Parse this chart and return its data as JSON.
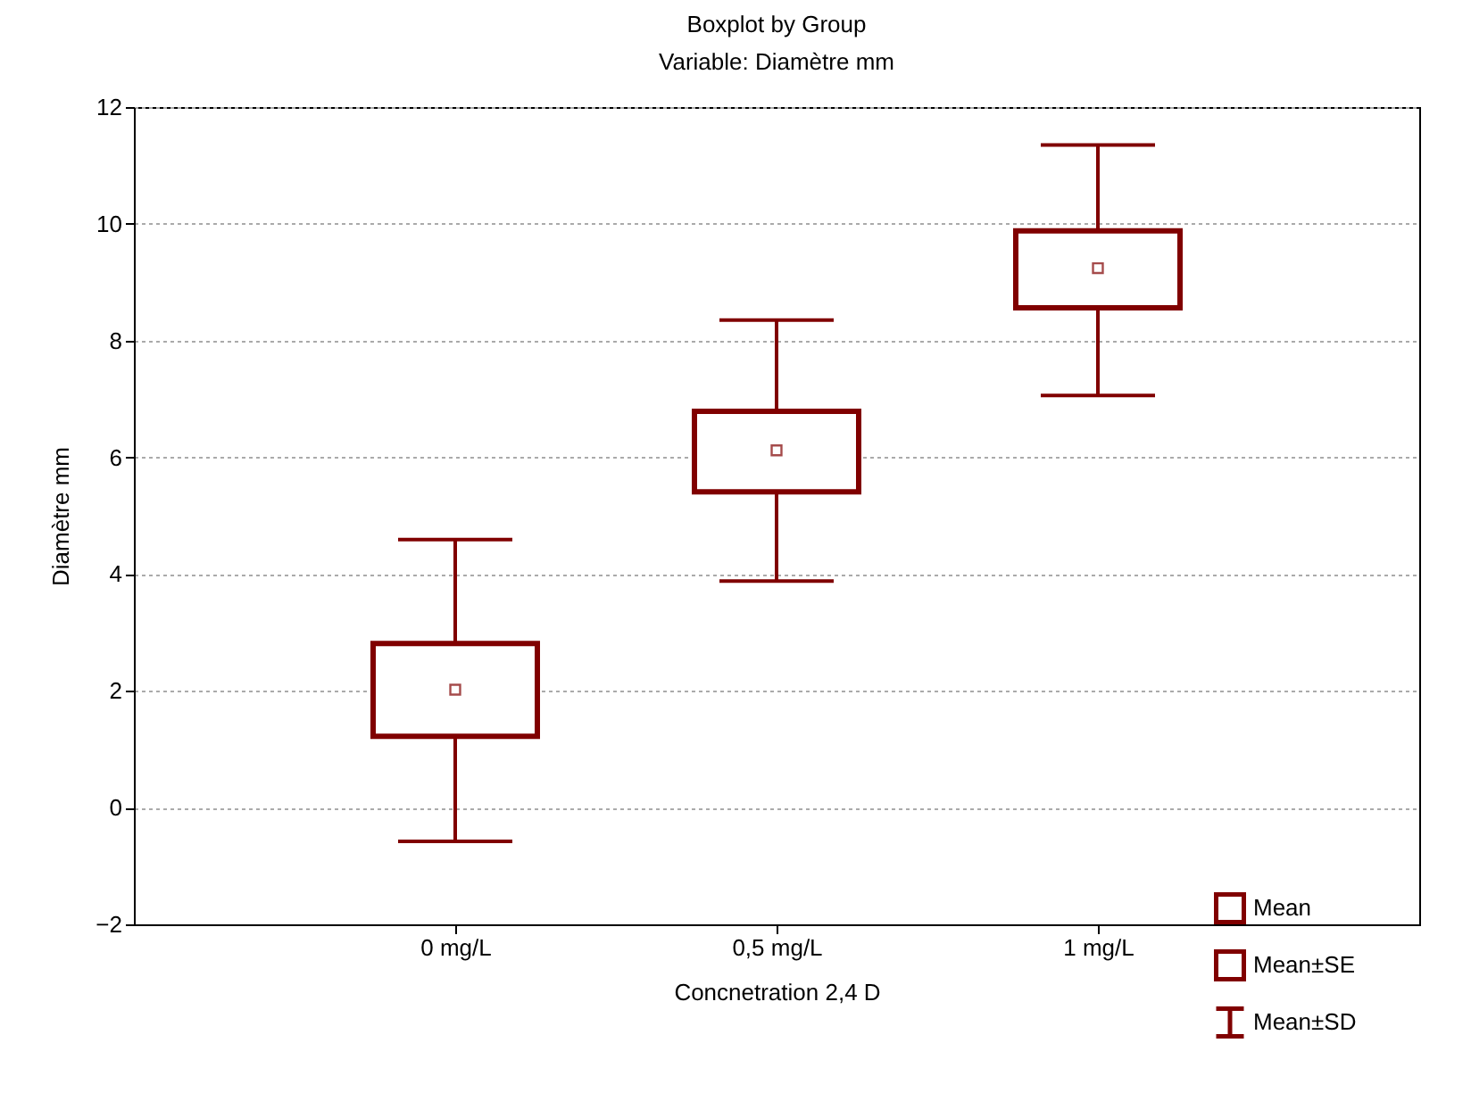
{
  "chart_data": {
    "type": "box",
    "title": "Boxplot by  Group",
    "subtitle": "Variable: Diamètre mm",
    "xlabel": "Concnetration 2,4 D",
    "ylabel": "Diamètre mm",
    "categories": [
      "0 mg/L",
      "0,5 mg/L",
      "1 mg/L"
    ],
    "ylim": [
      -2,
      12
    ],
    "yticks": [
      -2,
      0,
      2,
      4,
      6,
      8,
      10,
      12
    ],
    "grid": "y",
    "series": [
      {
        "color": "#800000",
        "boxes": [
          {
            "low": -0.58,
            "q1": 1.22,
            "q3": 2.81,
            "high": 4.59,
            "mean": 2.02
          },
          {
            "low": 3.88,
            "q1": 5.41,
            "q3": 6.79,
            "high": 8.35,
            "mean": 6.12
          },
          {
            "low": 7.06,
            "q1": 8.56,
            "q3": 9.88,
            "high": 11.35,
            "mean": 9.24
          }
        ]
      }
    ],
    "annotations": [
      "Mean",
      "Mean±SE",
      "Mean±SD"
    ]
  }
}
